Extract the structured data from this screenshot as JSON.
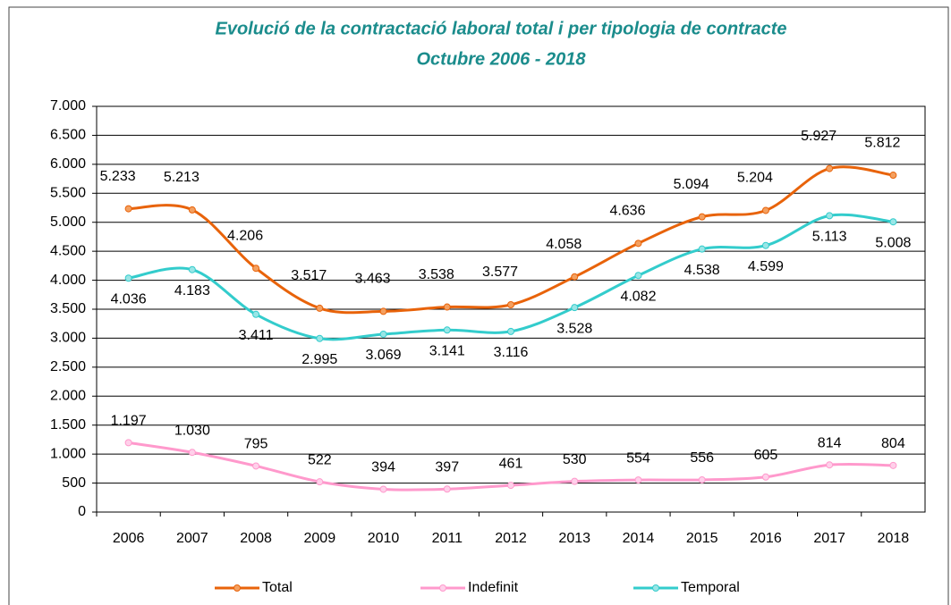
{
  "chart_data": {
    "type": "line",
    "title": "Evolució de la contractació laboral total i per tipologia de contracte",
    "subtitle": "Octubre 2006 - 2018",
    "categories": [
      "2006",
      "2007",
      "2008",
      "2009",
      "2010",
      "2011",
      "2012",
      "2013",
      "2014",
      "2015",
      "2016",
      "2017",
      "2018"
    ],
    "series": [
      {
        "name": "Total",
        "color": "#e8630a",
        "values": [
          5233,
          5213,
          4206,
          3517,
          3463,
          3538,
          3577,
          4058,
          4636,
          5094,
          5204,
          5927,
          5812
        ],
        "value_labels": [
          "5.233",
          "5.213",
          "4.206",
          "3.517",
          "3.463",
          "3.538",
          "3.577",
          "4.058",
          "4.636",
          "5.094",
          "5.204",
          "5.927",
          "5.812"
        ]
      },
      {
        "name": "Indefinit",
        "color": "#ff99cc",
        "values": [
          1197,
          1030,
          795,
          522,
          394,
          397,
          461,
          530,
          554,
          556,
          605,
          814,
          804
        ],
        "value_labels": [
          "1.197",
          "1.030",
          "795",
          "522",
          "394",
          "397",
          "461",
          "530",
          "554",
          "556",
          "605",
          "814",
          "804"
        ]
      },
      {
        "name": "Temporal",
        "color": "#33cccc",
        "values": [
          4036,
          4183,
          3411,
          2995,
          3069,
          3141,
          3116,
          3528,
          4082,
          4538,
          4599,
          5113,
          5008
        ],
        "value_labels": [
          "4.036",
          "4.183",
          "3.411",
          "2.995",
          "3.069",
          "3.141",
          "3.116",
          "3.528",
          "4.082",
          "4.538",
          "4.599",
          "5.113",
          "5.008"
        ]
      }
    ],
    "ylim": [
      0,
      7000
    ],
    "yticks": [
      0,
      500,
      {
        "value": 1000,
        "label": "1.000"
      },
      {
        "value": 1500,
        "label": "1.500"
      },
      {
        "value": 2000,
        "label": "2.000"
      },
      {
        "value": 2500,
        "label": "2.500"
      },
      {
        "value": 3000,
        "label": "3.000"
      },
      {
        "value": 3500,
        "label": "3.500"
      },
      {
        "value": 4000,
        "label": "4.000"
      },
      {
        "value": 4500,
        "label": "4.500"
      },
      {
        "value": 5000,
        "label": "5.000"
      },
      {
        "value": 5500,
        "label": "5.500"
      },
      {
        "value": 6000,
        "label": "6.000"
      },
      {
        "value": 6500,
        "label": "6.500"
      },
      {
        "value": 7000,
        "label": "7.000"
      }
    ],
    "grid": true,
    "smooth": true,
    "legend": "bottom"
  }
}
